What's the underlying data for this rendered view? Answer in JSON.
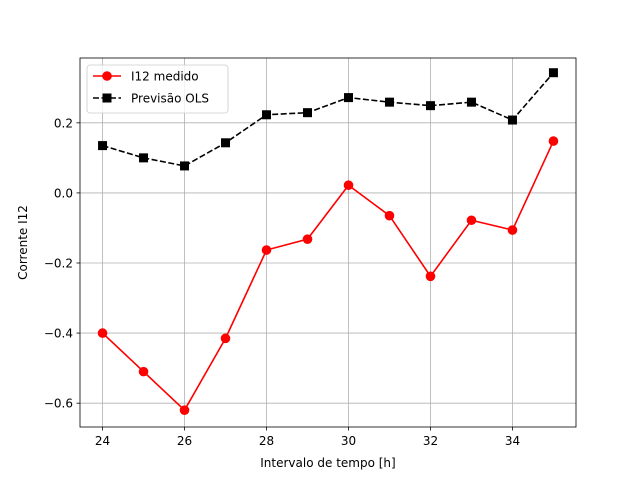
{
  "chart_data": {
    "type": "line",
    "title": "",
    "xlabel": "Intervalo de tempo [h]",
    "ylabel": "Corrente I12",
    "xlim": [
      23.45,
      35.55
    ],
    "ylim": [
      -0.668,
      0.385
    ],
    "xticks": [
      24,
      26,
      28,
      30,
      32,
      34
    ],
    "xtick_labels": [
      "24",
      "26",
      "28",
      "30",
      "32",
      "34"
    ],
    "yticks": [
      -0.6,
      -0.4,
      -0.2,
      0.0,
      0.2
    ],
    "ytick_labels": [
      "−0.6",
      "−0.4",
      "−0.2",
      "0.0",
      "0.2"
    ],
    "grid": true,
    "legend_position": "top-left",
    "x": [
      24,
      25,
      26,
      27,
      28,
      29,
      30,
      31,
      32,
      33,
      34,
      35
    ],
    "series": [
      {
        "name": "I12 medido",
        "color": "#ff0000",
        "linestyle": "solid",
        "marker": "circle",
        "values": [
          -0.4,
          -0.51,
          -0.62,
          -0.415,
          -0.163,
          -0.132,
          0.022,
          -0.065,
          -0.238,
          -0.078,
          -0.106,
          0.148
        ]
      },
      {
        "name": "Previsão OLS",
        "color": "#000000",
        "linestyle": "dashed",
        "marker": "square",
        "values": [
          0.135,
          0.1,
          0.077,
          0.143,
          0.223,
          0.229,
          0.272,
          0.259,
          0.249,
          0.259,
          0.208,
          0.343
        ]
      }
    ]
  }
}
